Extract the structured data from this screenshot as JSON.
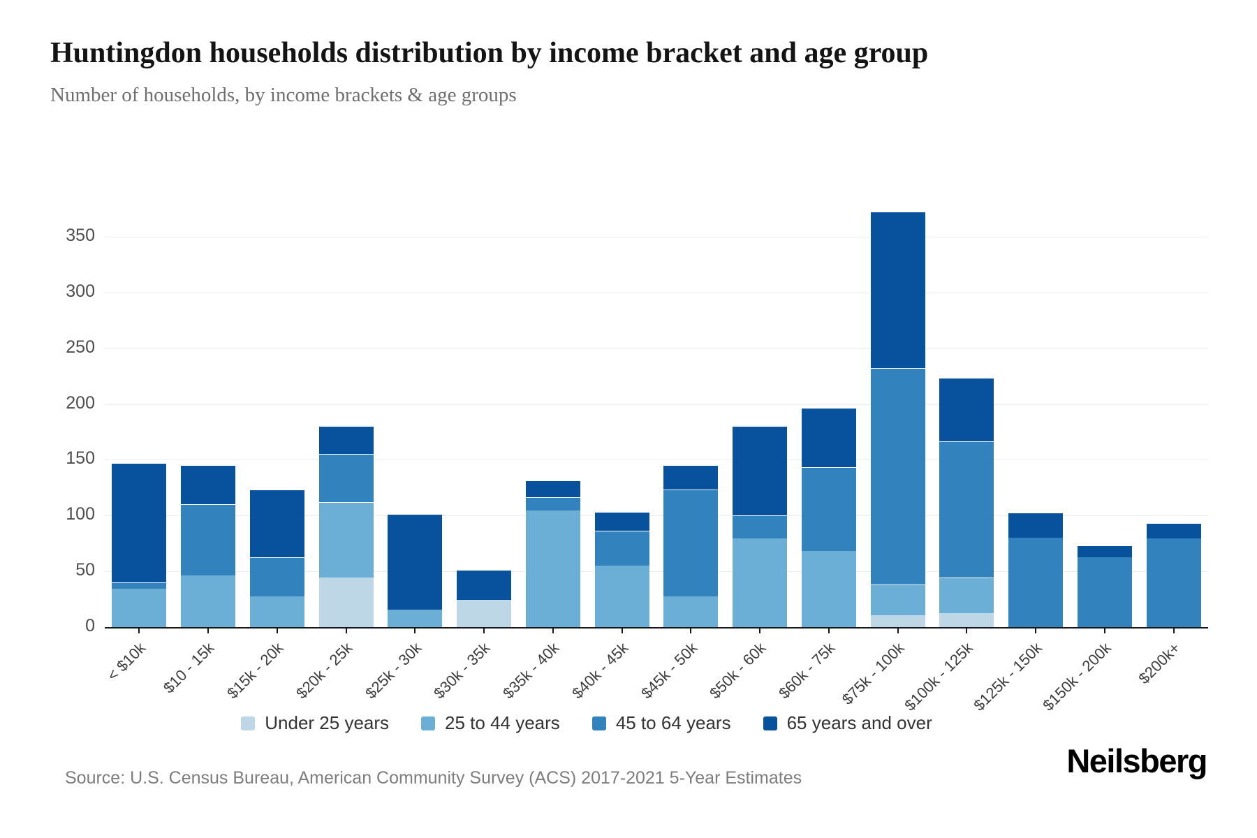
{
  "title": "Huntingdon households distribution by income bracket and age group",
  "subtitle": "Number of households, by income brackets & age groups",
  "source": "Source: U.S. Census Bureau, American Community Survey (ACS) 2017-2021 5-Year Estimates",
  "brand": "Neilsberg",
  "colors": {
    "axis": "#15171c",
    "gridline": "#ececec",
    "under_25": "#bdd7e7",
    "age_25_44": "#6baed6",
    "age_45_64": "#3182bd",
    "age_65_over": "#08519c"
  },
  "legend": [
    {
      "label": "Under 25 years",
      "color": "#bdd7e7"
    },
    {
      "label": "25 to 44 years",
      "color": "#6baed6"
    },
    {
      "label": "45 to 64 years",
      "color": "#3182bd"
    },
    {
      "label": "65 years and over",
      "color": "#08519c"
    }
  ],
  "chart_data": {
    "type": "bar",
    "stacked": true,
    "title": "Huntingdon households distribution by income bracket and age group",
    "subtitle": "Number of households, by income brackets & age groups",
    "xlabel": "",
    "ylabel": "Number of households",
    "grid": true,
    "legend_position": "bottom",
    "ylim": [
      0,
      375
    ],
    "yticks": [
      0,
      50,
      100,
      150,
      200,
      250,
      300,
      350
    ],
    "categories": [
      "< $10k",
      "$10 - 15k",
      "$15k - 20k",
      "$20k - 25k",
      "$25k - 30k",
      "$30k - 35k",
      "$35k - 40k",
      "$40k - 45k",
      "$45k - 50k",
      "$50k - 60k",
      "$60k - 75k",
      "$75k - 100k",
      "$100k - 125k",
      "$125k - 150k",
      "$150k - 200k",
      "$200k+"
    ],
    "series": [
      {
        "name": "Under 25 years",
        "color": "#bdd7e7",
        "values": [
          0,
          0,
          0,
          45,
          0,
          25,
          0,
          0,
          0,
          0,
          0,
          11,
          13,
          0,
          0,
          0
        ]
      },
      {
        "name": "25 to 44 years",
        "color": "#6baed6",
        "values": [
          35,
          47,
          28,
          68,
          16,
          0,
          105,
          56,
          28,
          80,
          69,
          28,
          32,
          0,
          0,
          0
        ]
      },
      {
        "name": "45 to 64 years",
        "color": "#3182bd",
        "values": [
          6,
          64,
          35,
          43,
          0,
          0,
          12,
          31,
          96,
          21,
          75,
          194,
          122,
          81,
          63,
          80
        ]
      },
      {
        "name": "65 years and over",
        "color": "#08519c",
        "values": [
          107,
          35,
          61,
          25,
          86,
          27,
          15,
          17,
          22,
          80,
          53,
          140,
          57,
          22,
          11,
          14
        ]
      }
    ],
    "totals": [
      148,
      146,
      124,
      181,
      102,
      52,
      132,
      104,
      146,
      181,
      197,
      373,
      224,
      103,
      74,
      94
    ]
  }
}
